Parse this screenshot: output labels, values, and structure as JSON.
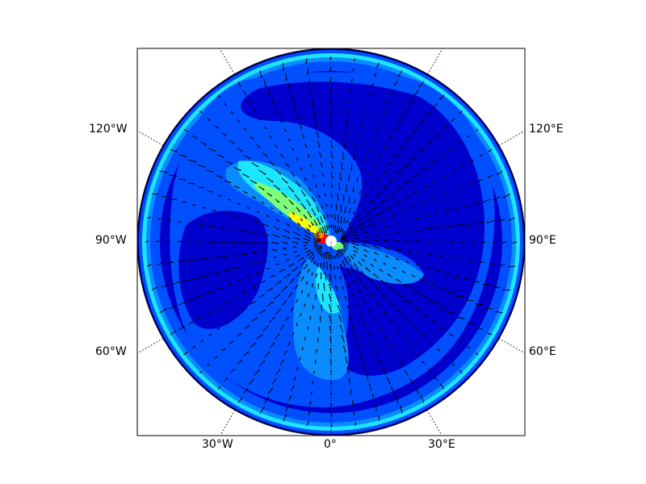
{
  "map": {
    "projection": "polar stereographic (north pole at center)",
    "field": "filled contours with wind vectors (quiver)",
    "colormap": "jet",
    "meridian_labels": {
      "top_left": "120°W",
      "top_right": "120°E",
      "mid_left": "90°W",
      "mid_right": "90°E",
      "low_left": "60°W",
      "low_right": "60°E",
      "bottom_left": "30°W",
      "bottom_center": "0°",
      "bottom_right": "30°E"
    },
    "colors": {
      "dark_blue": "#00008f",
      "blue_1": "#0000cd",
      "blue_2": "#0050ff",
      "light_blue": "#0a8cff",
      "cyan": "#1ce6ff",
      "green_yellow": "#c8ff37",
      "yellow": "#ffff00",
      "orange": "#ff8800",
      "red": "#ff0000",
      "arrow": "#000000",
      "grid": "#000000"
    }
  }
}
